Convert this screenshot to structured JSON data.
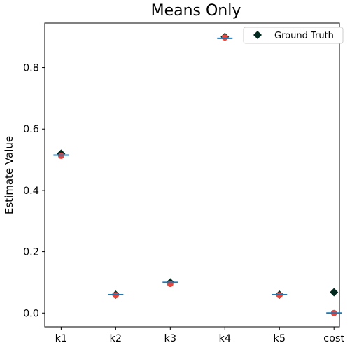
{
  "chart_data": {
    "type": "scatter",
    "title": "Means Only",
    "xlabel": "",
    "ylabel": "Estimate Value",
    "categories": [
      "k1",
      "k2",
      "k3",
      "k4",
      "k5",
      "cost"
    ],
    "ylim": [
      -0.045,
      0.945
    ],
    "yticks": [
      0.0,
      0.2,
      0.4,
      0.6,
      0.8
    ],
    "ytick_labels": [
      "0.0",
      "0.2",
      "0.4",
      "0.6",
      "0.8"
    ],
    "grid": false,
    "legend_position": "upper-right",
    "series": [
      {
        "name": "Ground Truth",
        "marker": "diamond",
        "color": "#01291f",
        "values": [
          0.52,
          0.06,
          0.1,
          0.9,
          0.06,
          0.068
        ]
      },
      {
        "marker": "circle",
        "color": "#e8443a",
        "values": [
          0.513,
          0.058,
          0.095,
          0.898,
          0.058,
          0.0
        ]
      },
      {
        "marker": "hline",
        "color": "#1f77b4",
        "values": [
          0.515,
          0.06,
          0.1,
          0.895,
          0.06,
          0.0
        ]
      }
    ]
  }
}
